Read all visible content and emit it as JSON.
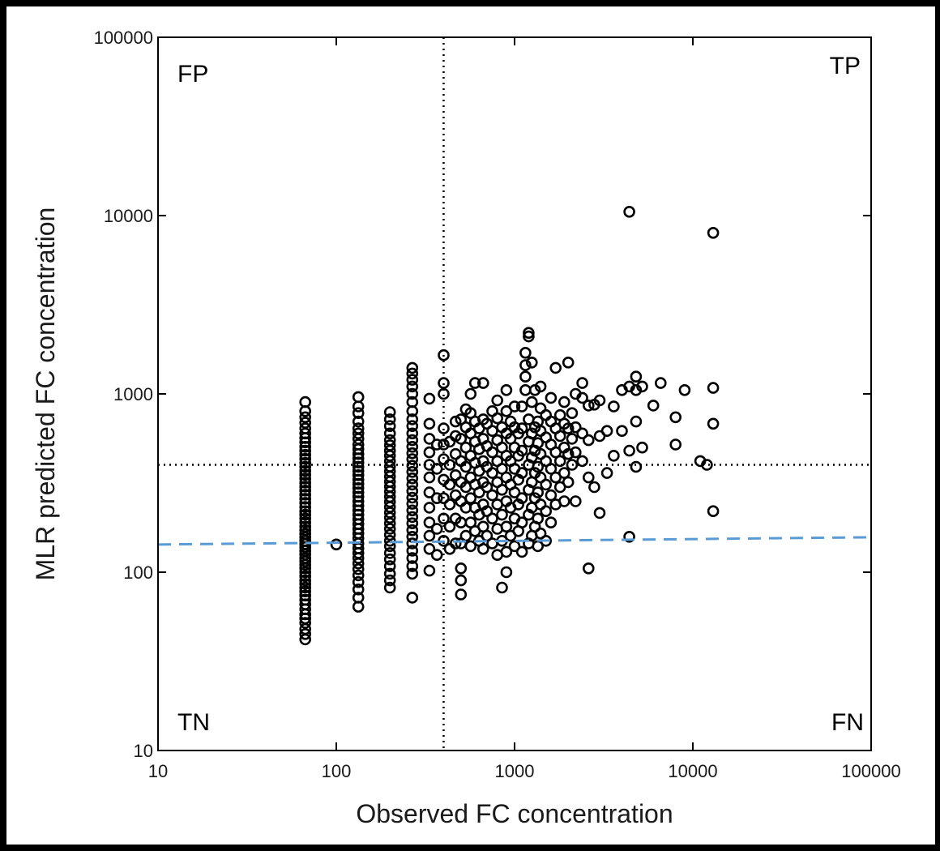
{
  "chart_data": {
    "type": "scatter",
    "title": "",
    "xlabel": "Observed FC concentration",
    "ylabel": "MLR predicted FC concentration",
    "xscale": "log",
    "yscale": "log",
    "xlim": [
      10,
      100000
    ],
    "ylim": [
      10,
      100000
    ],
    "xticks": [
      "10",
      "100",
      "1000",
      "10000",
      "100000"
    ],
    "yticks": [
      "10",
      "100",
      "1000",
      "10000",
      "100000"
    ],
    "grid": false,
    "quadrant_labels": {
      "top_left": "FP",
      "top_right": "TP",
      "bottom_left": "TN",
      "bottom_right": "FN"
    },
    "threshold_lines": {
      "x": 400,
      "y": 400,
      "style": "dotted",
      "color": "#000000"
    },
    "fit_line": {
      "x": [
        10,
        100000
      ],
      "y": [
        143,
        157
      ],
      "style": "dashed",
      "color": "#5b9bd5"
    },
    "marker": "open-circle",
    "points": [
      [
        67,
        42
      ],
      [
        67,
        45
      ],
      [
        67,
        48
      ],
      [
        67,
        52
      ],
      [
        67,
        55
      ],
      [
        67,
        58
      ],
      [
        67,
        62
      ],
      [
        67,
        66
      ],
      [
        67,
        70
      ],
      [
        67,
        74
      ],
      [
        67,
        78
      ],
      [
        67,
        82
      ],
      [
        67,
        86
      ],
      [
        67,
        90
      ],
      [
        67,
        95
      ],
      [
        67,
        100
      ],
      [
        67,
        105
      ],
      [
        67,
        110
      ],
      [
        67,
        115
      ],
      [
        67,
        120
      ],
      [
        67,
        126
      ],
      [
        67,
        132
      ],
      [
        67,
        138
      ],
      [
        67,
        144
      ],
      [
        67,
        150
      ],
      [
        67,
        157
      ],
      [
        67,
        164
      ],
      [
        67,
        172
      ],
      [
        67,
        180
      ],
      [
        67,
        190
      ],
      [
        67,
        200
      ],
      [
        67,
        210
      ],
      [
        67,
        220
      ],
      [
        67,
        232
      ],
      [
        67,
        245
      ],
      [
        67,
        258
      ],
      [
        67,
        272
      ],
      [
        67,
        287
      ],
      [
        67,
        302
      ],
      [
        67,
        318
      ],
      [
        67,
        335
      ],
      [
        67,
        352
      ],
      [
        67,
        370
      ],
      [
        67,
        390
      ],
      [
        67,
        410
      ],
      [
        67,
        432
      ],
      [
        67,
        455
      ],
      [
        67,
        480
      ],
      [
        67,
        505
      ],
      [
        67,
        535
      ],
      [
        67,
        565
      ],
      [
        67,
        600
      ],
      [
        67,
        640
      ],
      [
        67,
        690
      ],
      [
        67,
        740
      ],
      [
        67,
        800
      ],
      [
        67,
        900
      ],
      [
        100,
        143
      ],
      [
        133,
        64
      ],
      [
        133,
        72
      ],
      [
        133,
        80
      ],
      [
        133,
        88
      ],
      [
        133,
        96
      ],
      [
        133,
        104
      ],
      [
        133,
        112
      ],
      [
        133,
        120
      ],
      [
        133,
        128
      ],
      [
        133,
        136
      ],
      [
        133,
        145
      ],
      [
        133,
        155
      ],
      [
        133,
        165
      ],
      [
        133,
        175
      ],
      [
        133,
        186
      ],
      [
        133,
        198
      ],
      [
        133,
        210
      ],
      [
        133,
        222
      ],
      [
        133,
        236
      ],
      [
        133,
        250
      ],
      [
        133,
        265
      ],
      [
        133,
        280
      ],
      [
        133,
        296
      ],
      [
        133,
        313
      ],
      [
        133,
        330
      ],
      [
        133,
        350
      ],
      [
        133,
        370
      ],
      [
        133,
        390
      ],
      [
        133,
        412
      ],
      [
        133,
        435
      ],
      [
        133,
        460
      ],
      [
        133,
        490
      ],
      [
        133,
        520
      ],
      [
        133,
        560
      ],
      [
        133,
        600
      ],
      [
        133,
        640
      ],
      [
        133,
        700
      ],
      [
        133,
        780
      ],
      [
        133,
        850
      ],
      [
        133,
        960
      ],
      [
        200,
        82
      ],
      [
        200,
        90
      ],
      [
        200,
        98
      ],
      [
        200,
        108
      ],
      [
        200,
        118
      ],
      [
        200,
        128
      ],
      [
        200,
        140
      ],
      [
        200,
        150
      ],
      [
        200,
        162
      ],
      [
        200,
        175
      ],
      [
        200,
        188
      ],
      [
        200,
        202
      ],
      [
        200,
        216
      ],
      [
        200,
        232
      ],
      [
        200,
        248
      ],
      [
        200,
        265
      ],
      [
        200,
        283
      ],
      [
        200,
        302
      ],
      [
        200,
        322
      ],
      [
        200,
        344
      ],
      [
        200,
        368
      ],
      [
        200,
        392
      ],
      [
        200,
        420
      ],
      [
        200,
        450
      ],
      [
        200,
        480
      ],
      [
        200,
        515
      ],
      [
        200,
        550
      ],
      [
        200,
        600
      ],
      [
        200,
        660
      ],
      [
        200,
        720
      ],
      [
        200,
        790
      ],
      [
        267,
        72
      ],
      [
        267,
        98
      ],
      [
        267,
        108
      ],
      [
        267,
        120
      ],
      [
        267,
        132
      ],
      [
        267,
        145
      ],
      [
        267,
        158
      ],
      [
        267,
        172
      ],
      [
        267,
        188
      ],
      [
        267,
        204
      ],
      [
        267,
        222
      ],
      [
        267,
        242
      ],
      [
        267,
        262
      ],
      [
        267,
        285
      ],
      [
        267,
        310
      ],
      [
        267,
        336
      ],
      [
        267,
        365
      ],
      [
        267,
        395
      ],
      [
        267,
        430
      ],
      [
        267,
        465
      ],
      [
        267,
        505
      ],
      [
        267,
        550
      ],
      [
        267,
        600
      ],
      [
        267,
        660
      ],
      [
        267,
        720
      ],
      [
        267,
        800
      ],
      [
        267,
        900
      ],
      [
        267,
        1000
      ],
      [
        267,
        1100
      ],
      [
        267,
        1200
      ],
      [
        267,
        1300
      ],
      [
        267,
        1400
      ],
      [
        333,
        102
      ],
      [
        333,
        135
      ],
      [
        333,
        160
      ],
      [
        333,
        190
      ],
      [
        333,
        230
      ],
      [
        333,
        280
      ],
      [
        333,
        340
      ],
      [
        333,
        400
      ],
      [
        333,
        470
      ],
      [
        333,
        560
      ],
      [
        333,
        680
      ],
      [
        333,
        940
      ],
      [
        367,
        125
      ],
      [
        367,
        175
      ],
      [
        367,
        260
      ],
      [
        367,
        380
      ],
      [
        367,
        520
      ],
      [
        400,
        150
      ],
      [
        400,
        200
      ],
      [
        400,
        260
      ],
      [
        400,
        330
      ],
      [
        400,
        430
      ],
      [
        400,
        520
      ],
      [
        400,
        640
      ],
      [
        400,
        1000
      ],
      [
        400,
        1150
      ],
      [
        400,
        1650
      ],
      [
        433,
        135
      ],
      [
        433,
        180
      ],
      [
        433,
        240
      ],
      [
        433,
        310
      ],
      [
        433,
        400
      ],
      [
        433,
        540
      ],
      [
        467,
        145
      ],
      [
        467,
        200
      ],
      [
        467,
        270
      ],
      [
        467,
        350
      ],
      [
        467,
        460
      ],
      [
        467,
        580
      ],
      [
        467,
        700
      ],
      [
        500,
        75
      ],
      [
        500,
        90
      ],
      [
        500,
        105
      ],
      [
        500,
        145
      ],
      [
        500,
        190
      ],
      [
        500,
        250
      ],
      [
        500,
        320
      ],
      [
        500,
        420
      ],
      [
        500,
        560
      ],
      [
        500,
        720
      ],
      [
        533,
        160
      ],
      [
        533,
        230
      ],
      [
        533,
        300
      ],
      [
        533,
        390
      ],
      [
        533,
        500
      ],
      [
        533,
        650
      ],
      [
        533,
        820
      ],
      [
        567,
        140
      ],
      [
        567,
        190
      ],
      [
        567,
        260
      ],
      [
        567,
        340
      ],
      [
        567,
        450
      ],
      [
        567,
        600
      ],
      [
        567,
        780
      ],
      [
        567,
        1000
      ],
      [
        600,
        170
      ],
      [
        600,
        230
      ],
      [
        600,
        310
      ],
      [
        600,
        410
      ],
      [
        600,
        540
      ],
      [
        600,
        700
      ],
      [
        600,
        1150
      ],
      [
        633,
        150
      ],
      [
        633,
        210
      ],
      [
        633,
        280
      ],
      [
        633,
        370
      ],
      [
        633,
        490
      ],
      [
        633,
        640
      ],
      [
        667,
        135
      ],
      [
        667,
        180
      ],
      [
        667,
        240
      ],
      [
        667,
        320
      ],
      [
        667,
        420
      ],
      [
        667,
        560
      ],
      [
        667,
        720
      ],
      [
        667,
        1150
      ],
      [
        700,
        160
      ],
      [
        700,
        220
      ],
      [
        700,
        300
      ],
      [
        700,
        390
      ],
      [
        700,
        510
      ],
      [
        700,
        680
      ],
      [
        750,
        145
      ],
      [
        750,
        200
      ],
      [
        750,
        270
      ],
      [
        750,
        360
      ],
      [
        750,
        470
      ],
      [
        750,
        620
      ],
      [
        750,
        800
      ],
      [
        800,
        125
      ],
      [
        800,
        175
      ],
      [
        800,
        240
      ],
      [
        800,
        320
      ],
      [
        800,
        420
      ],
      [
        800,
        550
      ],
      [
        800,
        730
      ],
      [
        800,
        920
      ],
      [
        850,
        82
      ],
      [
        850,
        150
      ],
      [
        850,
        210
      ],
      [
        850,
        290
      ],
      [
        850,
        380
      ],
      [
        850,
        500
      ],
      [
        850,
        650
      ],
      [
        900,
        100
      ],
      [
        900,
        130
      ],
      [
        900,
        180
      ],
      [
        900,
        250
      ],
      [
        900,
        340
      ],
      [
        900,
        450
      ],
      [
        900,
        600
      ],
      [
        900,
        800
      ],
      [
        900,
        1050
      ],
      [
        950,
        160
      ],
      [
        950,
        230
      ],
      [
        950,
        310
      ],
      [
        950,
        420
      ],
      [
        950,
        560
      ],
      [
        950,
        700
      ],
      [
        1000,
        140
      ],
      [
        1000,
        200
      ],
      [
        1000,
        280
      ],
      [
        1000,
        380
      ],
      [
        1000,
        500
      ],
      [
        1000,
        650
      ],
      [
        1000,
        850
      ],
      [
        1050,
        170
      ],
      [
        1050,
        240
      ],
      [
        1050,
        330
      ],
      [
        1050,
        450
      ],
      [
        1050,
        600
      ],
      [
        1100,
        130
      ],
      [
        1100,
        190
      ],
      [
        1100,
        260
      ],
      [
        1100,
        360
      ],
      [
        1100,
        480
      ],
      [
        1100,
        640
      ],
      [
        1100,
        850
      ],
      [
        1150,
        1050
      ],
      [
        1150,
        1250
      ],
      [
        1150,
        1450
      ],
      [
        1150,
        1700
      ],
      [
        1200,
        145
      ],
      [
        1200,
        210
      ],
      [
        1200,
        290
      ],
      [
        1200,
        400
      ],
      [
        1200,
        540
      ],
      [
        1200,
        720
      ],
      [
        1200,
        2100
      ],
      [
        1200,
        2200
      ],
      [
        1250,
        160
      ],
      [
        1250,
        230
      ],
      [
        1250,
        320
      ],
      [
        1250,
        440
      ],
      [
        1250,
        600
      ],
      [
        1250,
        900
      ],
      [
        1250,
        1500
      ],
      [
        1300,
        180
      ],
      [
        1300,
        260
      ],
      [
        1300,
        360
      ],
      [
        1300,
        480
      ],
      [
        1300,
        650
      ],
      [
        1300,
        1050
      ],
      [
        1350,
        140
      ],
      [
        1350,
        200
      ],
      [
        1350,
        280
      ],
      [
        1350,
        390
      ],
      [
        1350,
        530
      ],
      [
        1350,
        700
      ],
      [
        1400,
        165
      ],
      [
        1400,
        240
      ],
      [
        1400,
        340
      ],
      [
        1400,
        460
      ],
      [
        1400,
        620
      ],
      [
        1400,
        830
      ],
      [
        1400,
        1100
      ],
      [
        1500,
        150
      ],
      [
        1500,
        220
      ],
      [
        1500,
        310
      ],
      [
        1500,
        420
      ],
      [
        1500,
        570
      ],
      [
        1500,
        760
      ],
      [
        1600,
        190
      ],
      [
        1600,
        270
      ],
      [
        1600,
        380
      ],
      [
        1600,
        520
      ],
      [
        1600,
        700
      ],
      [
        1600,
        950
      ],
      [
        1700,
        240
      ],
      [
        1700,
        340
      ],
      [
        1700,
        470
      ],
      [
        1700,
        640
      ],
      [
        1700,
        1400
      ],
      [
        1800,
        300
      ],
      [
        1800,
        420
      ],
      [
        1800,
        580
      ],
      [
        1800,
        760
      ],
      [
        1900,
        250
      ],
      [
        1900,
        360
      ],
      [
        1900,
        500
      ],
      [
        1900,
        680
      ],
      [
        1900,
        900
      ],
      [
        2000,
        320
      ],
      [
        2000,
        460
      ],
      [
        2000,
        640
      ],
      [
        2000,
        1500
      ],
      [
        2100,
        400
      ],
      [
        2100,
        560
      ],
      [
        2100,
        780
      ],
      [
        2200,
        250
      ],
      [
        2200,
        470
      ],
      [
        2200,
        650
      ],
      [
        2200,
        1000
      ],
      [
        2400,
        420
      ],
      [
        2400,
        600
      ],
      [
        2400,
        950
      ],
      [
        2400,
        1150
      ],
      [
        2600,
        105
      ],
      [
        2600,
        340
      ],
      [
        2600,
        550
      ],
      [
        2600,
        860
      ],
      [
        2800,
        300
      ],
      [
        2800,
        870
      ],
      [
        3000,
        215
      ],
      [
        3000,
        580
      ],
      [
        3000,
        920
      ],
      [
        3300,
        360
      ],
      [
        3300,
        620
      ],
      [
        3600,
        450
      ],
      [
        3600,
        850
      ],
      [
        4000,
        620
      ],
      [
        4000,
        1050
      ],
      [
        4400,
        158
      ],
      [
        4400,
        480
      ],
      [
        4400,
        1100
      ],
      [
        4400,
        10500
      ],
      [
        4800,
        390
      ],
      [
        4800,
        700
      ],
      [
        4800,
        1050
      ],
      [
        4800,
        1250
      ],
      [
        5200,
        500
      ],
      [
        5200,
        1100
      ],
      [
        6000,
        860
      ],
      [
        6600,
        1150
      ],
      [
        8000,
        520
      ],
      [
        8000,
        740
      ],
      [
        9000,
        1050
      ],
      [
        11000,
        420
      ],
      [
        12000,
        400
      ],
      [
        13000,
        220
      ],
      [
        13000,
        680
      ],
      [
        13000,
        1080
      ],
      [
        13000,
        8000
      ]
    ]
  }
}
